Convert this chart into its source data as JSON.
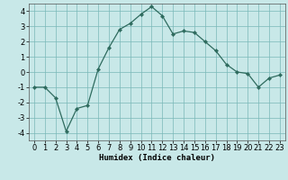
{
  "x": [
    0,
    1,
    2,
    3,
    4,
    5,
    6,
    7,
    8,
    9,
    10,
    11,
    12,
    13,
    14,
    15,
    16,
    17,
    18,
    19,
    20,
    21,
    22,
    23
  ],
  "y": [
    -1,
    -1,
    -1.7,
    -3.9,
    -2.4,
    -2.2,
    0.2,
    1.6,
    2.8,
    3.2,
    3.8,
    4.3,
    3.7,
    2.5,
    2.7,
    2.6,
    2.0,
    1.4,
    0.5,
    0.0,
    -0.1,
    -1.0,
    -0.4,
    -0.2
  ],
  "line_color": "#2e6b5e",
  "marker": "D",
  "marker_size": 2.2,
  "bg_color": "#c8e8e8",
  "grid_color": "#7ab8b8",
  "xlabel": "Humidex (Indice chaleur)",
  "xlim": [
    -0.5,
    23.5
  ],
  "ylim": [
    -4.5,
    4.5
  ],
  "yticks": [
    -4,
    -3,
    -2,
    -1,
    0,
    1,
    2,
    3,
    4
  ],
  "xticks": [
    0,
    1,
    2,
    3,
    4,
    5,
    6,
    7,
    8,
    9,
    10,
    11,
    12,
    13,
    14,
    15,
    16,
    17,
    18,
    19,
    20,
    21,
    22,
    23
  ],
  "xlabel_fontsize": 6.5,
  "tick_fontsize": 6,
  "linewidth": 0.9
}
